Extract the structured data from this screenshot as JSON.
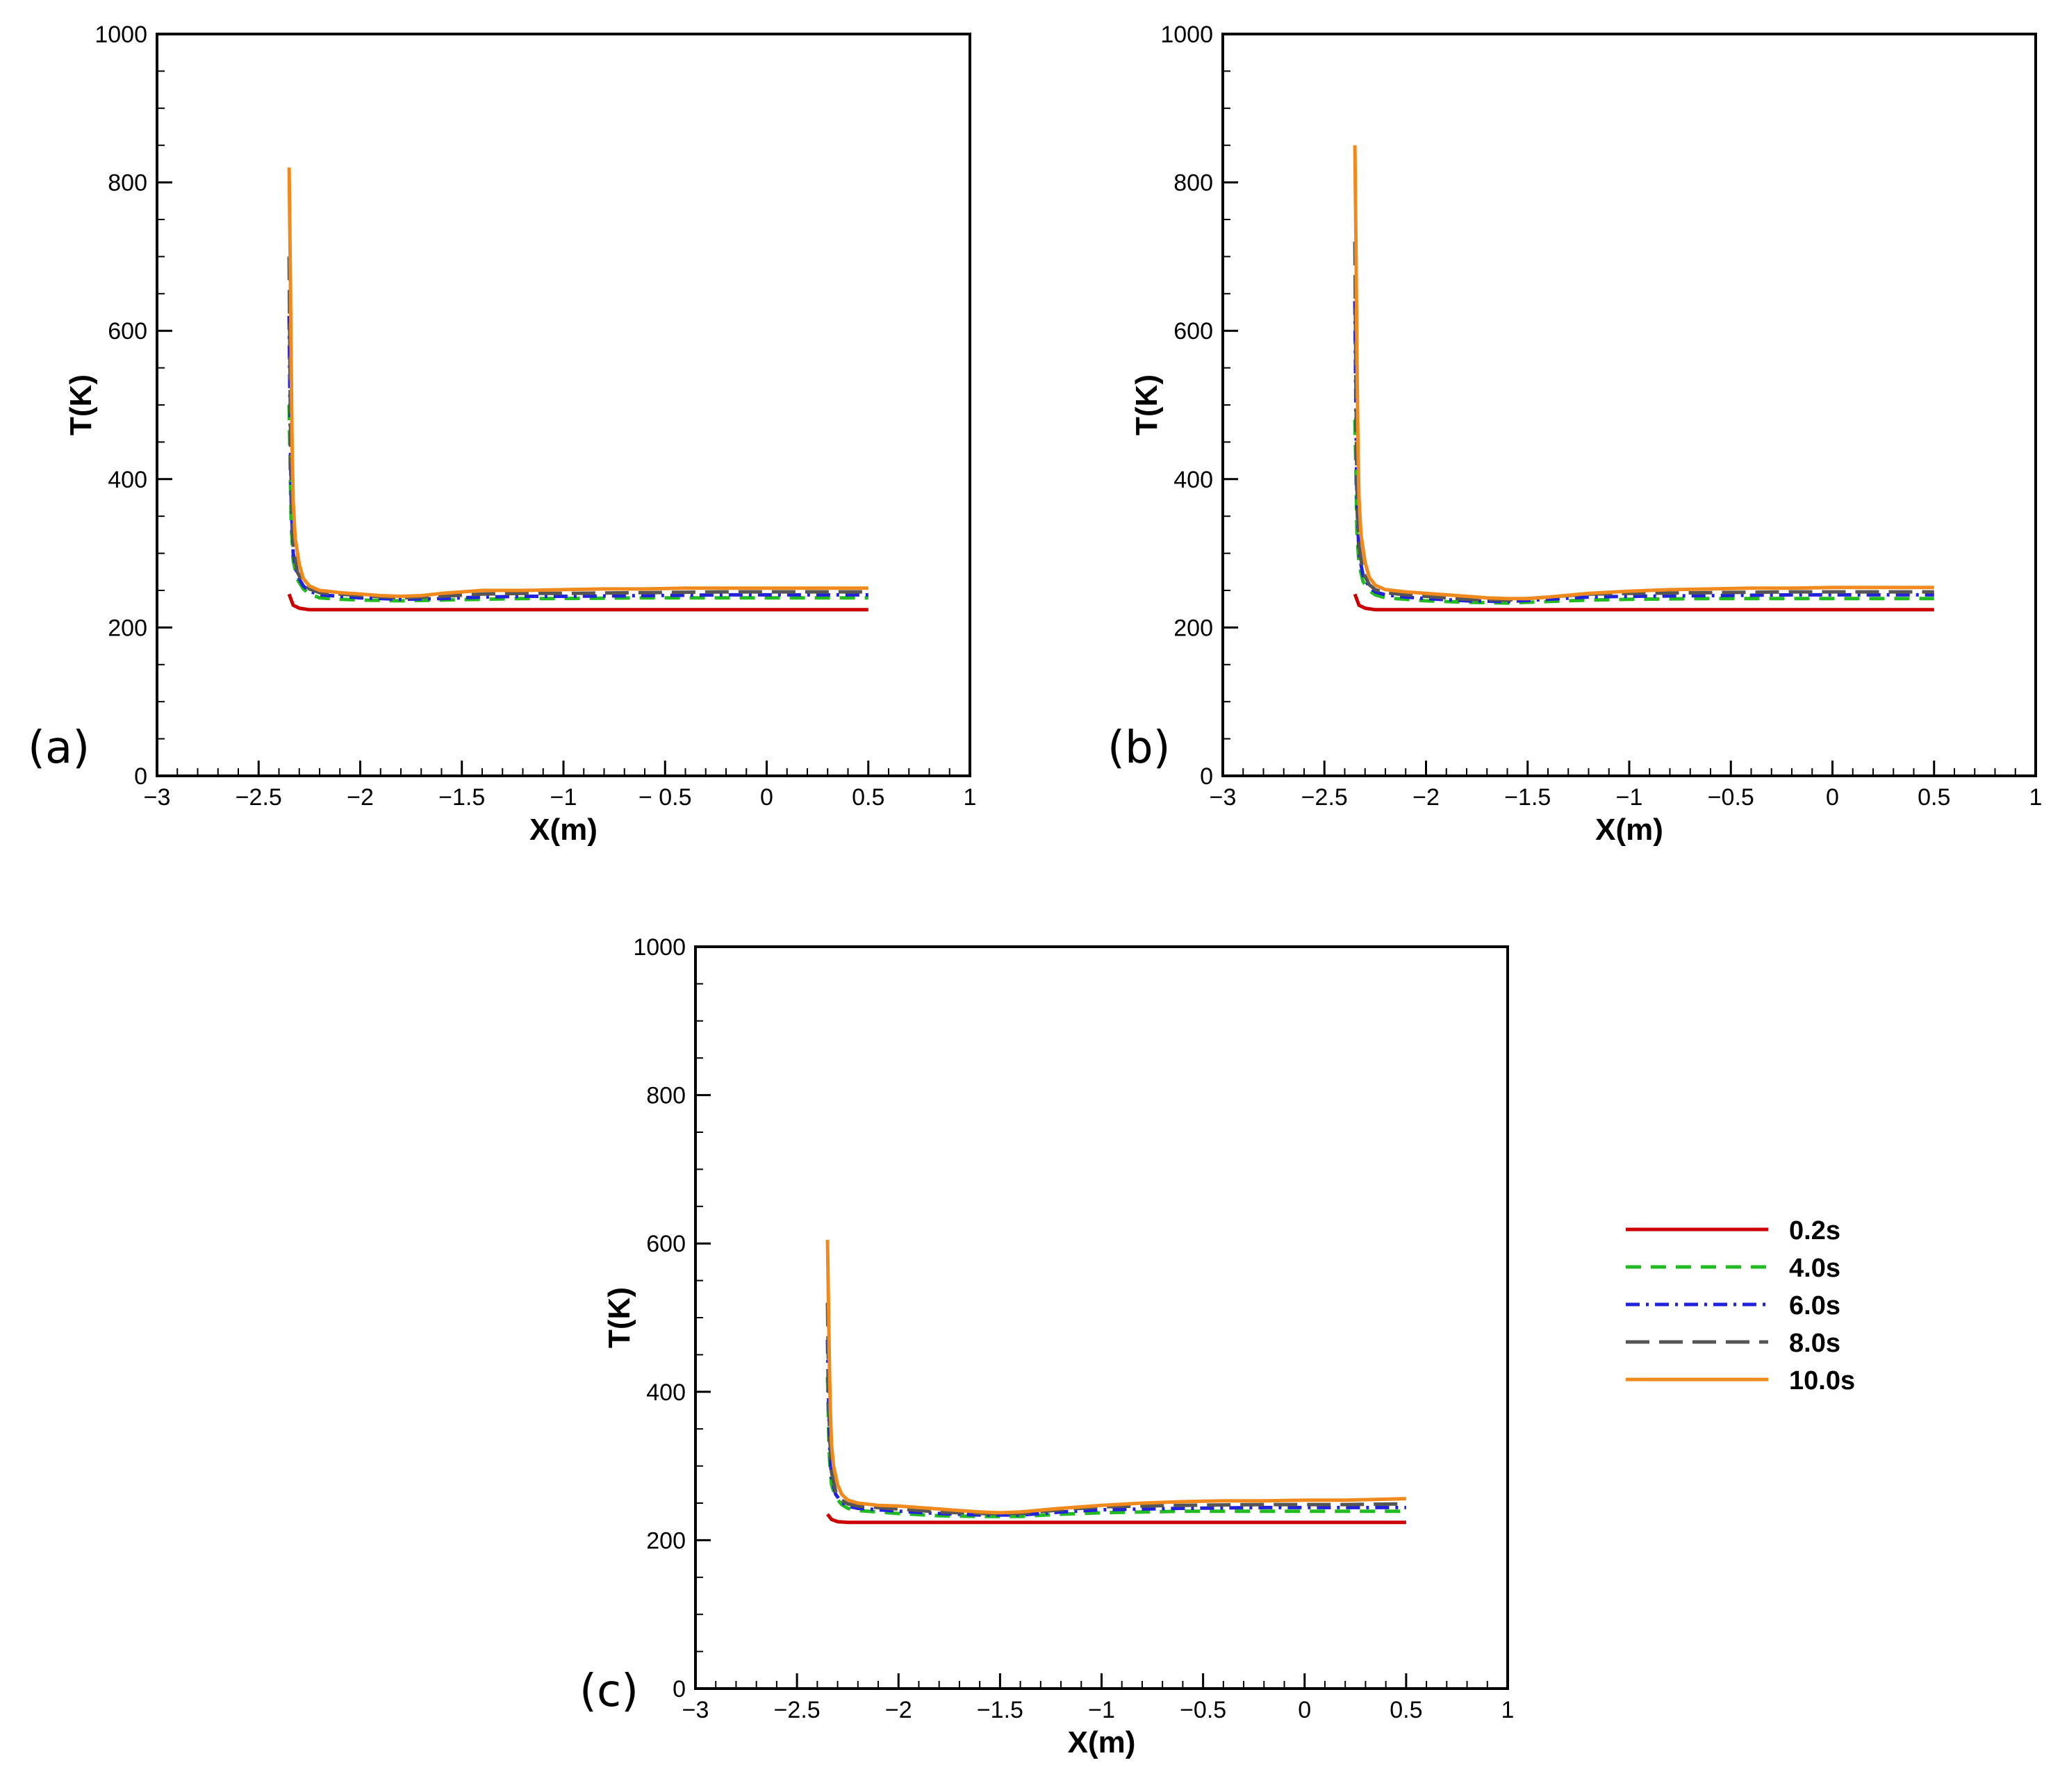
{
  "chart_data": [
    {
      "panel_label": "(a)",
      "type": "line",
      "xlabel": "X(m)",
      "ylabel": "T(K)",
      "xlim": [
        -3,
        1
      ],
      "ylim": [
        0,
        1000
      ],
      "xticks": [
        -3,
        -2.5,
        -2,
        -1.5,
        -1,
        -0.5,
        0,
        0.5,
        1
      ],
      "xtick_labels": [
        "−3",
        "−2.5",
        "−2",
        "−1.5",
        "−1",
        "− 0.5",
        "0",
        "0.5",
        "1"
      ],
      "yticks": [
        0,
        200,
        400,
        600,
        800,
        1000
      ],
      "ytick_labels": [
        "0",
        "200",
        "400",
        "600",
        "800",
        "1000"
      ],
      "series": [
        {
          "name": "0.2s",
          "color": "#cc0000",
          "dash": "solid",
          "x": [
            -2.35,
            -2.33,
            -2.3,
            -2.25,
            -2.0,
            -1.5,
            -1.0,
            -0.5,
            0.0,
            0.5
          ],
          "y": [
            245,
            230,
            226,
            224,
            224,
            224,
            224,
            224,
            224,
            224
          ]
        },
        {
          "name": "4.0s",
          "color": "#22bb22",
          "dash": "dashed",
          "x": [
            -2.35,
            -2.345,
            -2.34,
            -2.33,
            -2.31,
            -2.28,
            -2.25,
            -2.2,
            -2.1,
            -2.0,
            -1.8,
            -1.6,
            -1.4,
            -1.2,
            -1.0,
            -0.6,
            -0.2,
            0.2,
            0.5
          ],
          "y": [
            500,
            420,
            340,
            290,
            265,
            252,
            245,
            240,
            238,
            237,
            236,
            237,
            238,
            239,
            239,
            240,
            240,
            240,
            240
          ]
        },
        {
          "name": "6.0s",
          "color": "#2222dd",
          "dash": "dashdot",
          "x": [
            -2.35,
            -2.345,
            -2.34,
            -2.33,
            -2.31,
            -2.28,
            -2.25,
            -2.2,
            -2.1,
            -2.0,
            -1.8,
            -1.6,
            -1.4,
            -1.2,
            -1.0,
            -0.6,
            -0.2,
            0.2,
            0.5
          ],
          "y": [
            620,
            480,
            370,
            300,
            270,
            256,
            249,
            244,
            242,
            240,
            238,
            239,
            241,
            242,
            242,
            243,
            244,
            244,
            244
          ]
        },
        {
          "name": "8.0s",
          "color": "#555555",
          "dash": "longdash",
          "x": [
            -2.35,
            -2.345,
            -2.34,
            -2.33,
            -2.31,
            -2.28,
            -2.25,
            -2.2,
            -2.1,
            -2.0,
            -1.8,
            -1.6,
            -1.4,
            -1.2,
            -1.0,
            -0.6,
            -0.2,
            0.2,
            0.5
          ],
          "y": [
            700,
            520,
            390,
            310,
            275,
            259,
            252,
            247,
            245,
            243,
            240,
            242,
            245,
            246,
            246,
            247,
            248,
            248,
            248
          ]
        },
        {
          "name": "10.0s",
          "color": "#f08a1e",
          "dash": "solid",
          "x": [
            -2.35,
            -2.345,
            -2.34,
            -2.335,
            -2.33,
            -2.32,
            -2.3,
            -2.28,
            -2.25,
            -2.2,
            -2.1,
            -2.0,
            -1.9,
            -1.8,
            -1.7,
            -1.6,
            -1.5,
            -1.4,
            -1.2,
            -1.0,
            -0.8,
            -0.6,
            -0.4,
            -0.2,
            0.0,
            0.2,
            0.5
          ],
          "y": [
            820,
            700,
            560,
            440,
            370,
            320,
            285,
            266,
            256,
            250,
            247,
            245,
            243,
            242,
            243,
            246,
            248,
            250,
            250,
            251,
            252,
            252,
            253,
            253,
            253,
            253,
            253
          ]
        }
      ]
    },
    {
      "panel_label": "(b)",
      "type": "line",
      "xlabel": "X(m)",
      "ylabel": "T(K)",
      "xlim": [
        -3,
        1
      ],
      "ylim": [
        0,
        1000
      ],
      "xticks": [
        -3,
        -2.5,
        -2,
        -1.5,
        -1,
        -0.5,
        0,
        0.5,
        1
      ],
      "xtick_labels": [
        "−3",
        "−2.5",
        "−2",
        "−1.5",
        "−1",
        "−0.5",
        "0",
        "0.5",
        "1"
      ],
      "yticks": [
        0,
        200,
        400,
        600,
        800,
        1000
      ],
      "ytick_labels": [
        "0",
        "200",
        "400",
        "600",
        "800",
        "1000"
      ],
      "series": [
        {
          "name": "0.2s",
          "color": "#cc0000",
          "dash": "solid",
          "x": [
            -2.35,
            -2.33,
            -2.3,
            -2.25,
            -2.0,
            -1.5,
            -1.0,
            -0.5,
            0.0,
            0.5
          ],
          "y": [
            245,
            230,
            226,
            224,
            224,
            224,
            224,
            224,
            224,
            224
          ]
        },
        {
          "name": "4.0s",
          "color": "#22bb22",
          "dash": "dashed",
          "x": [
            -2.35,
            -2.345,
            -2.34,
            -2.33,
            -2.31,
            -2.28,
            -2.25,
            -2.2,
            -2.1,
            -2.0,
            -1.8,
            -1.6,
            -1.4,
            -1.2,
            -1.0,
            -0.6,
            -0.2,
            0.2,
            0.5
          ],
          "y": [
            480,
            410,
            330,
            285,
            262,
            250,
            244,
            240,
            238,
            236,
            234,
            233,
            235,
            237,
            238,
            239,
            239,
            239,
            239
          ]
        },
        {
          "name": "6.0s",
          "color": "#2222dd",
          "dash": "dashdot",
          "x": [
            -2.35,
            -2.345,
            -2.34,
            -2.33,
            -2.31,
            -2.28,
            -2.25,
            -2.2,
            -2.1,
            -2.0,
            -1.8,
            -1.6,
            -1.4,
            -1.2,
            -1.0,
            -0.6,
            -0.2,
            0.2,
            0.5
          ],
          "y": [
            640,
            490,
            370,
            300,
            270,
            255,
            248,
            244,
            241,
            239,
            236,
            235,
            238,
            241,
            242,
            243,
            244,
            244,
            244
          ]
        },
        {
          "name": "8.0s",
          "color": "#555555",
          "dash": "longdash",
          "x": [
            -2.35,
            -2.345,
            -2.34,
            -2.33,
            -2.31,
            -2.28,
            -2.25,
            -2.2,
            -2.1,
            -2.0,
            -1.8,
            -1.6,
            -1.4,
            -1.2,
            -1.0,
            -0.6,
            -0.2,
            0.2,
            0.5
          ],
          "y": [
            720,
            530,
            390,
            310,
            275,
            258,
            251,
            247,
            244,
            242,
            238,
            237,
            241,
            245,
            246,
            247,
            248,
            248,
            248
          ]
        },
        {
          "name": "10.0s",
          "color": "#f08a1e",
          "dash": "solid",
          "x": [
            -2.35,
            -2.345,
            -2.34,
            -2.335,
            -2.33,
            -2.32,
            -2.3,
            -2.28,
            -2.25,
            -2.2,
            -2.1,
            -2.0,
            -1.9,
            -1.8,
            -1.7,
            -1.6,
            -1.5,
            -1.4,
            -1.2,
            -1.0,
            -0.8,
            -0.6,
            -0.4,
            -0.2,
            0.0,
            0.2,
            0.5
          ],
          "y": [
            850,
            720,
            570,
            450,
            375,
            325,
            288,
            268,
            257,
            251,
            248,
            246,
            244,
            242,
            240,
            239,
            239,
            241,
            246,
            249,
            251,
            252,
            253,
            253,
            254,
            254,
            254
          ]
        }
      ]
    },
    {
      "panel_label": "(c)",
      "type": "line",
      "xlabel": "X(m)",
      "ylabel": "T(K)",
      "xlim": [
        -3,
        1
      ],
      "ylim": [
        0,
        1000
      ],
      "xticks": [
        -3,
        -2.5,
        -2,
        -1.5,
        -1,
        -0.5,
        0,
        0.5,
        1
      ],
      "xtick_labels": [
        "−3",
        "−2.5",
        "−2",
        "−1.5",
        "−1",
        "−0.5",
        "0",
        "0.5",
        "1"
      ],
      "yticks": [
        0,
        200,
        400,
        600,
        800,
        1000
      ],
      "ytick_labels": [
        "0",
        "200",
        "400",
        "600",
        "800",
        "1000"
      ],
      "series": [
        {
          "name": "0.2s",
          "color": "#cc0000",
          "dash": "solid",
          "x": [
            -2.35,
            -2.33,
            -2.3,
            -2.25,
            -2.0,
            -1.5,
            -1.0,
            -0.5,
            0.0,
            0.5
          ],
          "y": [
            235,
            228,
            225,
            224,
            224,
            224,
            224,
            224,
            224,
            224
          ]
        },
        {
          "name": "4.0s",
          "color": "#22bb22",
          "dash": "dashed",
          "x": [
            -2.35,
            -2.345,
            -2.34,
            -2.33,
            -2.31,
            -2.28,
            -2.25,
            -2.2,
            -2.1,
            -2.0,
            -1.8,
            -1.6,
            -1.4,
            -1.2,
            -1.0,
            -0.6,
            -0.2,
            0.2,
            0.5
          ],
          "y": [
            420,
            360,
            310,
            275,
            258,
            248,
            243,
            240,
            238,
            236,
            233,
            232,
            232,
            235,
            237,
            239,
            239,
            239,
            239
          ]
        },
        {
          "name": "6.0s",
          "color": "#2222dd",
          "dash": "dashdot",
          "x": [
            -2.35,
            -2.345,
            -2.34,
            -2.33,
            -2.31,
            -2.28,
            -2.25,
            -2.2,
            -2.1,
            -2.0,
            -1.8,
            -1.6,
            -1.4,
            -1.2,
            -1.0,
            -0.6,
            -0.2,
            0.2,
            0.5
          ],
          "y": [
            470,
            400,
            330,
            285,
            262,
            251,
            246,
            243,
            241,
            239,
            236,
            234,
            234,
            238,
            241,
            243,
            244,
            244,
            244
          ]
        },
        {
          "name": "8.0s",
          "color": "#555555",
          "dash": "longdash",
          "x": [
            -2.35,
            -2.345,
            -2.34,
            -2.33,
            -2.31,
            -2.28,
            -2.25,
            -2.2,
            -2.1,
            -2.0,
            -1.8,
            -1.6,
            -1.4,
            -1.2,
            -1.0,
            -0.6,
            -0.2,
            0.2,
            0.5
          ],
          "y": [
            520,
            430,
            345,
            292,
            266,
            254,
            249,
            246,
            244,
            242,
            238,
            236,
            236,
            241,
            245,
            247,
            248,
            248,
            249
          ]
        },
        {
          "name": "10.0s",
          "color": "#f08a1e",
          "dash": "solid",
          "x": [
            -2.35,
            -2.345,
            -2.34,
            -2.335,
            -2.33,
            -2.32,
            -2.3,
            -2.28,
            -2.25,
            -2.2,
            -2.1,
            -2.0,
            -1.9,
            -1.8,
            -1.7,
            -1.6,
            -1.5,
            -1.4,
            -1.2,
            -1.0,
            -0.8,
            -0.6,
            -0.4,
            -0.2,
            0.0,
            0.2,
            0.5
          ],
          "y": [
            605,
            520,
            430,
            370,
            330,
            300,
            275,
            262,
            254,
            250,
            247,
            246,
            244,
            242,
            240,
            238,
            237,
            238,
            243,
            247,
            250,
            252,
            253,
            253,
            254,
            254,
            256
          ]
        }
      ]
    }
  ],
  "legend": {
    "placement": "right of panel (c)",
    "entries": [
      {
        "label": "0.2s",
        "color": "#cc0000",
        "dash": "solid"
      },
      {
        "label": "4.0s",
        "color": "#22bb22",
        "dash": "dashed"
      },
      {
        "label": "6.0s",
        "color": "#2222dd",
        "dash": "dashdot"
      },
      {
        "label": "8.0s",
        "color": "#555555",
        "dash": "longdash"
      },
      {
        "label": "10.0s",
        "color": "#f08a1e",
        "dash": "solid"
      }
    ]
  }
}
